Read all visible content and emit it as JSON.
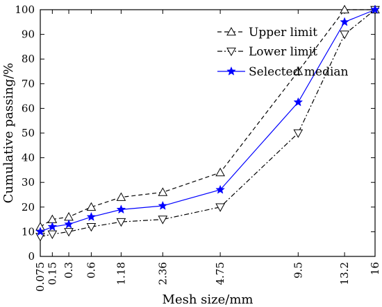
{
  "chart_data": {
    "type": "line",
    "xlabel": "Mesh size/mm",
    "ylabel": "Cumulative passing/%",
    "ylim": [
      0,
      100
    ],
    "yticks": [
      0,
      10,
      20,
      30,
      40,
      50,
      60,
      70,
      80,
      90,
      100
    ],
    "x_scale": "power-0.45",
    "x": [
      "0.075",
      "0.15",
      "0.3",
      "0.6",
      "1.18",
      "2.36",
      "4.75",
      "9.5",
      "13.2",
      "16"
    ],
    "x_values": [
      0.075,
      0.15,
      0.3,
      0.6,
      1.18,
      2.36,
      4.75,
      9.5,
      13.2,
      16
    ],
    "legend_position": "top-right",
    "grid": false,
    "series": [
      {
        "name": "Upper limit",
        "values": [
          12,
          15,
          16,
          20,
          24,
          26,
          34,
          75,
          100,
          100
        ],
        "marker": "triangle-up",
        "line": "dashed",
        "color": "#000000"
      },
      {
        "name": "Lower limit",
        "values": [
          8,
          9,
          10,
          12,
          14,
          15,
          20,
          50,
          90,
          100
        ],
        "marker": "triangle-down",
        "line": "dash-dot",
        "color": "#000000"
      },
      {
        "name": "Selected median",
        "values": [
          10,
          12,
          13,
          16,
          19,
          20.5,
          27,
          62.5,
          95,
          100
        ],
        "marker": "star",
        "line": "solid",
        "color": "#0000ff"
      }
    ]
  }
}
